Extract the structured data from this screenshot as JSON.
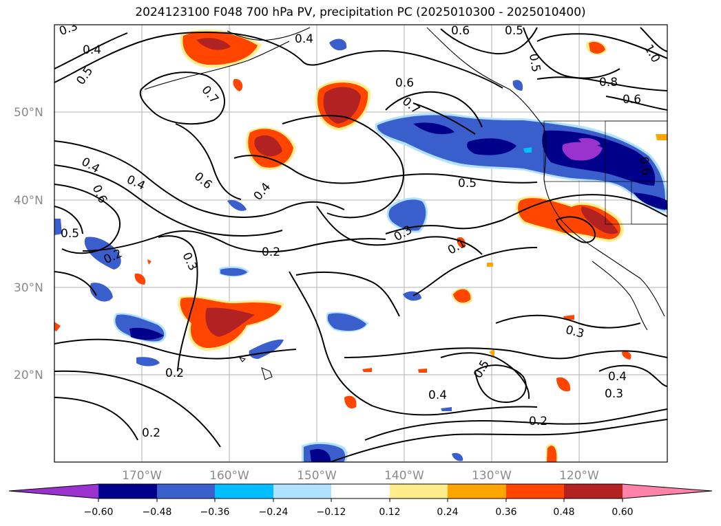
{
  "title": "2024123100 F048 700 hPa PV, precipitation PC (2025010300 - 2025010400)",
  "map": {
    "lat_labels": [
      "50°N",
      "40°N",
      "30°N",
      "20°N"
    ],
    "lon_labels": [
      "170°W",
      "160°W",
      "150°W",
      "140°W",
      "130°W",
      "120°W"
    ],
    "contour_labels": [
      "0.3",
      "0.4",
      "0.5",
      "0.7",
      "0.4",
      "0.6",
      "0.5",
      "0.4",
      "0.6",
      "0.7",
      "0.6",
      "0.4",
      "0.4",
      "0.6",
      "0.5",
      "0.2",
      "0.3",
      "0.2",
      "0.3",
      "0.1",
      "0.2",
      "0.2",
      "0.5",
      "0.4",
      "0.2",
      "0.3",
      "0.4",
      "0.3",
      "0.8",
      "0.6",
      "1.0",
      "0.5",
      "0.5",
      "0.6"
    ],
    "colors": {
      "purple": "#9a32cd",
      "navy": "#00008b",
      "royal": "#3a5fcd",
      "deepsky": "#00bfff",
      "lightblue": "#b0e2ff",
      "lightyellow": "#ffec8b",
      "orange": "#ffa500",
      "orangered": "#ff4500",
      "firebrick": "#b22222",
      "pink": "#ff82ab"
    }
  },
  "colorbar": {
    "ticks": [
      "−0.60",
      "−0.48",
      "−0.36",
      "−0.24",
      "−0.12",
      "0.12",
      "0.24",
      "0.36",
      "0.48",
      "0.60"
    ]
  }
}
